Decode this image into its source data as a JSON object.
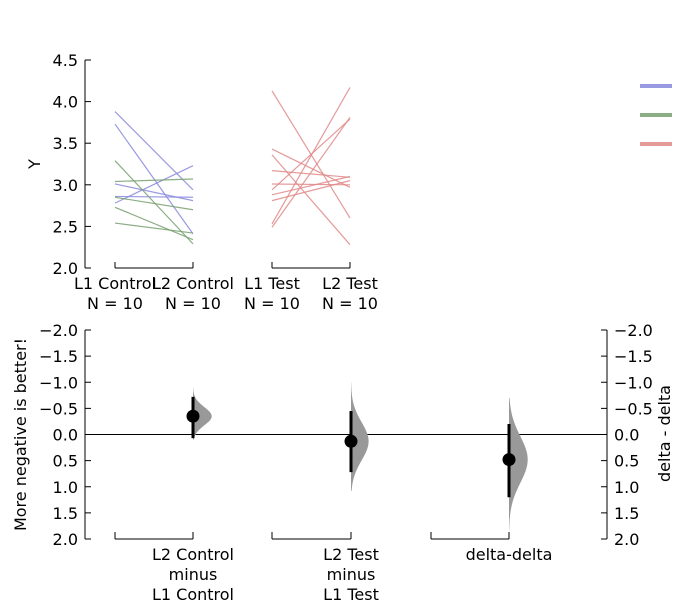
{
  "chart_data": [
    {
      "type": "line",
      "panel": "paired-slopegraph",
      "ylabel": "Y",
      "ylim": [
        2.0,
        4.5
      ],
      "yticks": [
        "2.0",
        "2.5",
        "3.0",
        "3.5",
        "4.0",
        "4.5"
      ],
      "groups": [
        {
          "categories": [
            "L1 Control",
            "L2 Control"
          ],
          "sample_sizes": [
            "N = 10",
            "N = 10"
          ],
          "pairs": [
            {
              "hue": 0,
              "values": [
                3.88,
                2.94
              ]
            },
            {
              "hue": 0,
              "values": [
                3.73,
                2.41
              ]
            },
            {
              "hue": 0,
              "values": [
                3.01,
                2.81
              ]
            },
            {
              "hue": 0,
              "values": [
                2.86,
                2.85
              ]
            },
            {
              "hue": 0,
              "values": [
                2.78,
                3.23
              ]
            },
            {
              "hue": 1,
              "values": [
                3.29,
                2.29
              ]
            },
            {
              "hue": 1,
              "values": [
                3.04,
                3.07
              ]
            },
            {
              "hue": 1,
              "values": [
                2.85,
                2.7
              ]
            },
            {
              "hue": 1,
              "values": [
                2.73,
                2.34
              ]
            },
            {
              "hue": 1,
              "values": [
                2.54,
                2.42
              ]
            }
          ]
        },
        {
          "categories": [
            "L1 Test",
            "L2 Test"
          ],
          "sample_sizes": [
            "N = 10",
            "N = 10"
          ],
          "pairs": [
            {
              "hue": 2,
              "values": [
                4.13,
                2.6
              ]
            },
            {
              "hue": 2,
              "values": [
                3.43,
                2.97
              ]
            },
            {
              "hue": 2,
              "values": [
                3.36,
                2.28
              ]
            },
            {
              "hue": 2,
              "values": [
                3.17,
                3.09
              ]
            },
            {
              "hue": 2,
              "values": [
                3.01,
                3.0
              ]
            },
            {
              "hue": 2,
              "values": [
                2.94,
                3.79
              ]
            },
            {
              "hue": 2,
              "values": [
                2.88,
                3.1
              ]
            },
            {
              "hue": 2,
              "values": [
                2.81,
                3.05
              ]
            },
            {
              "hue": 2,
              "values": [
                2.53,
                4.17
              ]
            },
            {
              "hue": 2,
              "values": [
                2.49,
                3.81
              ]
            }
          ]
        }
      ],
      "legend": {
        "placement": "top-right",
        "entries": [
          {
            "label": "",
            "color": "#8888dd"
          },
          {
            "label": "",
            "color": "#77a070"
          },
          {
            "label": "",
            "color": "#e08888"
          }
        ]
      }
    },
    {
      "type": "scatter",
      "panel": "delta-delta",
      "ylabel": "More negative is better!",
      "ylabel_right": "delta - delta",
      "ylim": [
        2.0,
        -2.0
      ],
      "yticks": [
        "−2.0",
        "−1.5",
        "−1.0",
        "−0.5",
        "0.0",
        "0.5",
        "1.0",
        "1.5",
        "2.0"
      ],
      "categories": [
        [
          "L2 Control",
          "minus",
          "L1 Control"
        ],
        [
          "L2 Test",
          "minus",
          "L1 Test"
        ],
        [
          "delta-delta"
        ]
      ],
      "effect_sizes": [
        {
          "estimate": -0.35,
          "ci": [
            -0.72,
            0.07
          ],
          "dist_range": [
            -0.9,
            0.1
          ],
          "dist_width": 0.85
        },
        {
          "estimate": 0.13,
          "ci": [
            -0.45,
            0.72
          ],
          "dist_range": [
            -1.0,
            1.08
          ],
          "dist_width": 0.8
        },
        {
          "estimate": 0.48,
          "ci": [
            -0.2,
            1.2
          ],
          "dist_range": [
            -0.7,
            1.85
          ],
          "dist_width": 0.85
        }
      ],
      "reference_line": 0.0
    }
  ],
  "colors": {
    "hue0": "#8888dd",
    "hue1": "#77a070",
    "hue2": "#e08888",
    "ci_marker": "#000000",
    "distribution": "#999999"
  }
}
